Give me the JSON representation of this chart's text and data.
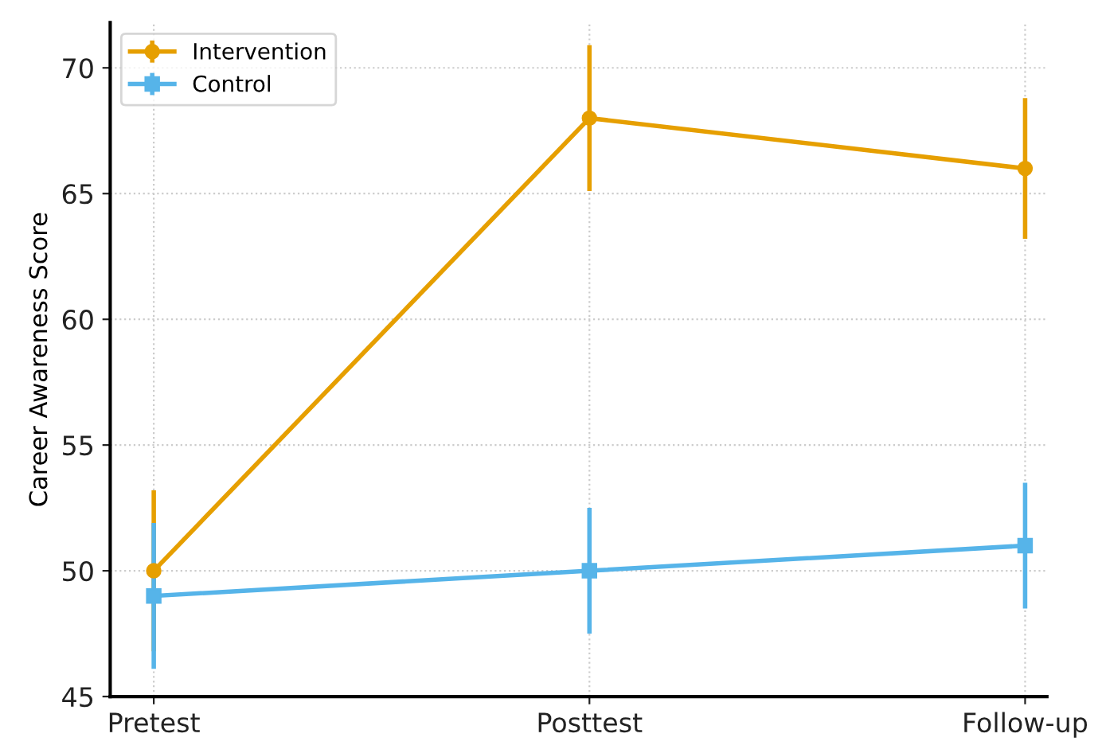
{
  "chart_data": {
    "type": "line",
    "ylabel": "Career Awareness Score",
    "categories": [
      "Pretest",
      "Posttest",
      "Follow-up"
    ],
    "series": [
      {
        "name": "Intervention",
        "color": "#e69f00",
        "values": [
          50,
          68,
          66
        ],
        "errors": [
          3.2,
          2.9,
          2.8
        ],
        "marker": "circle"
      },
      {
        "name": "Control",
        "color": "#56b4e9",
        "values": [
          49,
          50,
          51
        ],
        "errors": [
          2.9,
          2.5,
          2.5
        ],
        "marker": "square"
      }
    ],
    "ylim": [
      45,
      71.8
    ],
    "yticks": [
      45,
      50,
      55,
      60,
      65,
      70
    ],
    "grid": true,
    "legend": "top left",
    "line_style": "solid"
  }
}
